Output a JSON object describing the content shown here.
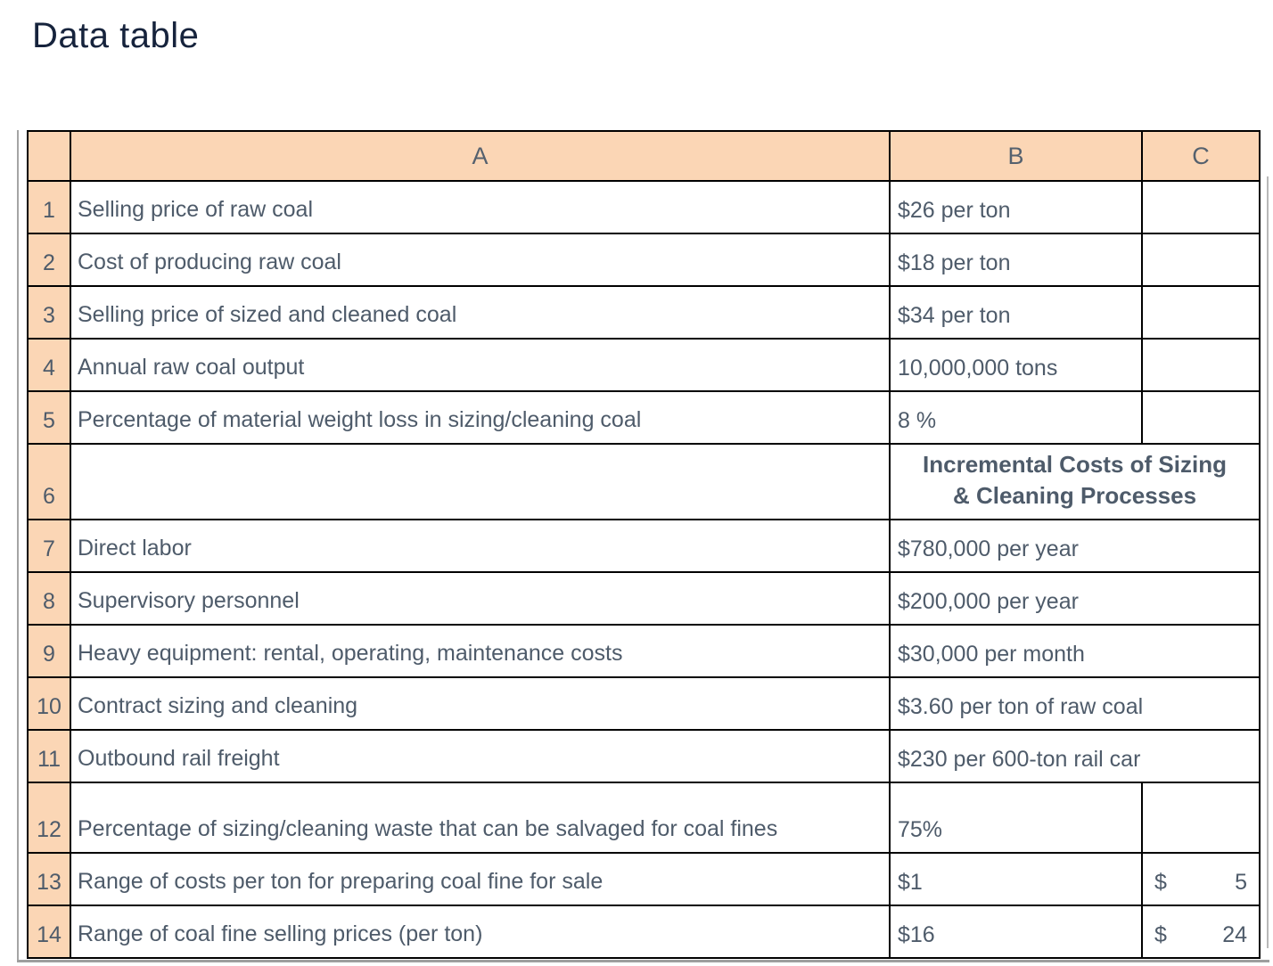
{
  "page": {
    "title": "Data table"
  },
  "colors": {
    "header_fill": "#FBD6B5",
    "grid_border": "#000000",
    "cell_text": "#4E5B6A",
    "title_text": "#16233C",
    "frame_line": "#A5A5A5"
  },
  "table": {
    "column_headers": [
      "A",
      "B",
      "C"
    ],
    "rows": [
      {
        "num": "1",
        "type": "split",
        "label": "Selling price of raw coal",
        "value": "$26 per ton",
        "c_value": ""
      },
      {
        "num": "2",
        "type": "split",
        "label": "Cost of producing raw coal",
        "value": "$18 per ton",
        "c_value": ""
      },
      {
        "num": "3",
        "type": "split",
        "label": "Selling price of sized and cleaned coal",
        "value": "$34 per ton",
        "c_value": ""
      },
      {
        "num": "4",
        "type": "split",
        "label": "Annual raw coal output",
        "value": "10,000,000 tons",
        "c_value": ""
      },
      {
        "num": "5",
        "type": "split",
        "label": "Percentage of material weight loss in sizing/cleaning coal",
        "value": "8 %",
        "c_value": ""
      },
      {
        "num": "6",
        "type": "heading",
        "label": "",
        "value_line1": "Incremental Costs of Sizing",
        "value_line2": "& Cleaning Processes"
      },
      {
        "num": "7",
        "type": "merged",
        "label": "Direct labor",
        "value": "$780,000 per year"
      },
      {
        "num": "8",
        "type": "merged",
        "label": "Supervisory personnel",
        "value": "$200,000 per year"
      },
      {
        "num": "9",
        "type": "merged",
        "label": "Heavy equipment: rental, operating, maintenance costs",
        "value": "$30,000 per month"
      },
      {
        "num": "10",
        "type": "merged",
        "label": "Contract sizing and cleaning",
        "value": "$3.60 per ton of raw coal"
      },
      {
        "num": "11",
        "type": "merged",
        "label": "Outbound rail freight",
        "value": "$230 per 600-ton rail car"
      },
      {
        "num": "12",
        "type": "split",
        "label": "Percentage of sizing/cleaning waste that can be salvaged for coal fines",
        "value": "75%",
        "c_value": ""
      },
      {
        "num": "13",
        "type": "accounting",
        "label": "Range of costs per ton for preparing coal fine for sale",
        "value": "$1",
        "c_currency": "$",
        "c_amount": "5"
      },
      {
        "num": "14",
        "type": "accounting",
        "label": "Range of coal fine selling prices (per ton)",
        "value": "$16",
        "c_currency": "$",
        "c_amount": "24"
      }
    ]
  }
}
